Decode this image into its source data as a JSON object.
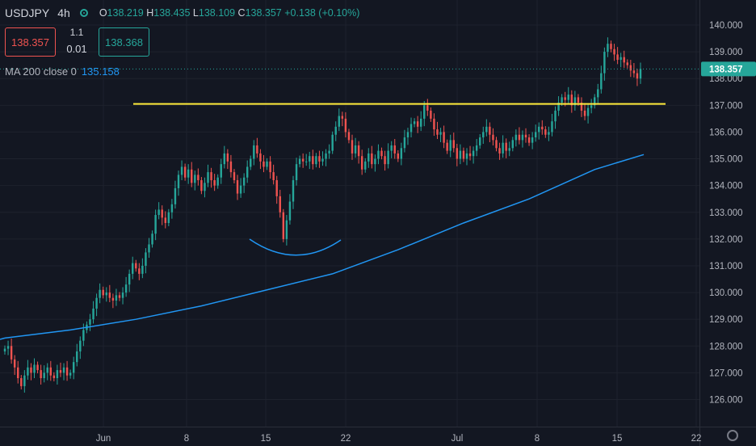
{
  "header": {
    "symbol": "USDJPY",
    "timeframe": "4h",
    "open_label": "O",
    "open": "138.219",
    "high_label": "H",
    "high": "138.435",
    "low_label": "L",
    "low": "138.109",
    "close_label": "C",
    "close": "138.357",
    "change": "+0.138 (+0.10%)"
  },
  "trade": {
    "sell_price": "138.357",
    "lot_step": "1.1",
    "lot": "0.01",
    "buy_price": "138.368"
  },
  "indicator": {
    "label": "MA 200 close 0",
    "value": "135.158"
  },
  "colors": {
    "up": "#26a69a",
    "down": "#ef5350",
    "ma": "#2196f3",
    "level": "#ffeb3b",
    "background": "#131722"
  },
  "chart_data": {
    "type": "candlestick",
    "symbol": "USDJPY",
    "timeframe": "4h",
    "x_tick_labels": [
      "Jun",
      "8",
      "15",
      "22",
      "Jul",
      "8",
      "15",
      "22"
    ],
    "y_ticks": [
      126,
      127,
      128,
      129,
      130,
      131,
      132,
      133,
      134,
      135,
      136,
      137,
      138,
      139,
      140
    ],
    "ylim": [
      125.5,
      140.4
    ],
    "last_price": 138.357,
    "horizontal_level": 137.05,
    "closes": [
      127.9,
      128.0,
      127.5,
      127.2,
      126.8,
      126.5,
      126.9,
      127.2,
      127.0,
      127.3,
      127.1,
      126.8,
      127.0,
      127.2,
      126.9,
      126.8,
      127.1,
      127.0,
      127.2,
      126.9,
      127.0,
      127.4,
      127.8,
      128.2,
      128.6,
      128.8,
      129.0,
      129.4,
      129.8,
      130.1,
      129.9,
      130.0,
      129.8,
      129.7,
      129.9,
      129.8,
      130.0,
      130.3,
      130.7,
      131.1,
      130.9,
      130.7,
      131.0,
      131.5,
      131.8,
      132.2,
      132.9,
      133.1,
      132.8,
      132.6,
      133.0,
      133.3,
      133.9,
      134.4,
      134.7,
      134.3,
      134.6,
      134.1,
      134.4,
      134.2,
      133.8,
      134.1,
      134.5,
      134.2,
      134.0,
      134.3,
      134.8,
      135.2,
      134.9,
      134.5,
      134.2,
      133.7,
      134.0,
      134.3,
      134.7,
      135.0,
      135.5,
      135.2,
      134.9,
      134.7,
      134.9,
      134.5,
      134.2,
      133.6,
      133.0,
      132.0,
      132.7,
      133.4,
      134.2,
      134.8,
      135.0,
      134.9,
      134.9,
      135.1,
      134.8,
      135.1,
      134.9,
      135.0,
      135.2,
      135.3,
      135.9,
      136.2,
      136.6,
      136.5,
      136.0,
      135.7,
      135.2,
      135.5,
      135.1,
      134.6,
      134.9,
      135.2,
      134.8,
      135.0,
      135.3,
      135.1,
      134.8,
      135.3,
      135.5,
      135.2,
      135.0,
      135.4,
      135.8,
      136.0,
      136.3,
      136.4,
      136.2,
      136.5,
      137.0,
      136.8,
      136.5,
      136.1,
      135.9,
      136.0,
      135.6,
      135.3,
      135.7,
      135.4,
      135.0,
      135.3,
      135.0,
      135.2,
      135.1,
      135.3,
      135.5,
      135.8,
      136.0,
      136.2,
      135.9,
      135.7,
      135.4,
      135.2,
      135.6,
      135.3,
      135.4,
      135.7,
      135.9,
      135.7,
      135.9,
      135.8,
      135.6,
      135.8,
      136.0,
      136.2,
      136.1,
      135.9,
      136.0,
      136.4,
      136.8,
      137.1,
      137.3,
      137.2,
      137.4,
      137.0,
      137.3,
      137.1,
      136.8,
      136.6,
      136.9,
      137.0,
      137.3,
      137.6,
      138.2,
      139.0,
      139.3,
      139.1,
      138.9,
      138.7,
      138.8,
      138.6,
      138.5,
      138.3,
      138.2,
      138.0,
      138.357
    ],
    "ma200": {
      "name": "MA 200 close 0",
      "x_index": [
        0,
        20,
        40,
        60,
        80,
        100,
        120,
        140,
        160,
        180,
        195
      ],
      "values": [
        128.3,
        128.6,
        129.0,
        129.5,
        130.1,
        130.7,
        131.6,
        132.6,
        133.5,
        134.6,
        135.158
      ]
    }
  }
}
